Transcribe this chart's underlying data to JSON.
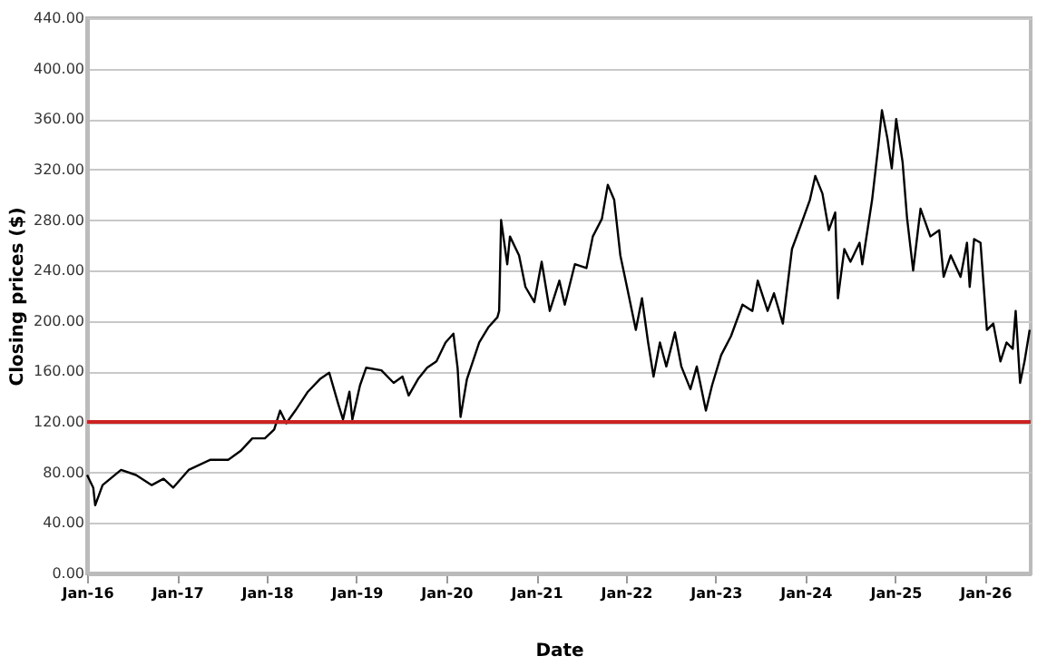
{
  "chart_data": {
    "type": "line",
    "xlabel": "Date",
    "ylabel": "Closing prices ($)",
    "x": [
      "2016-01-01",
      "2016-01-26",
      "2016-02-03",
      "2016-03-04",
      "2016-05-18",
      "2016-07-18",
      "2016-09-20",
      "2016-11-07",
      "2016-12-16",
      "2017-02-17",
      "2017-05-15",
      "2017-07-28",
      "2017-09-16",
      "2017-11-03",
      "2017-12-24",
      "2018-01-31",
      "2018-02-24",
      "2018-03-21",
      "2018-04-27",
      "2018-06-17",
      "2018-08-05",
      "2018-09-12",
      "2018-10-19",
      "2018-11-07",
      "2018-12-03",
      "2018-12-15",
      "2019-01-15",
      "2019-02-09",
      "2019-04-12",
      "2019-06-01",
      "2019-07-07",
      "2019-08-01",
      "2019-09-08",
      "2019-10-15",
      "2019-11-22",
      "2019-12-29",
      "2020-01-30",
      "2020-02-16",
      "2020-02-28",
      "2020-03-25",
      "2020-05-14",
      "2020-06-20",
      "2020-07-27",
      "2020-08-03",
      "2020-08-11",
      "2020-09-05",
      "2020-09-16",
      "2020-10-23",
      "2020-11-18",
      "2020-12-24",
      "2021-01-23",
      "2021-02-25",
      "2021-04-05",
      "2021-04-27",
      "2021-06-07",
      "2021-07-24",
      "2021-08-19",
      "2021-09-25",
      "2021-10-19",
      "2021-11-14",
      "2021-12-09",
      "2022-01-05",
      "2022-02-10",
      "2022-03-07",
      "2022-04-01",
      "2022-04-23",
      "2022-05-19",
      "2022-06-14",
      "2022-07-19",
      "2022-08-14",
      "2022-09-20",
      "2022-10-16",
      "2022-11-22",
      "2022-12-17",
      "2023-01-23",
      "2023-03-04",
      "2023-04-20",
      "2023-05-30",
      "2023-06-21",
      "2023-07-31",
      "2023-08-26",
      "2023-10-01",
      "2023-11-07",
      "2023-12-13",
      "2024-01-19",
      "2024-02-10",
      "2024-03-10",
      "2024-04-05",
      "2024-05-01",
      "2024-05-12",
      "2024-06-07",
      "2024-07-02",
      "2024-08-08",
      "2024-08-19",
      "2024-09-28",
      "2024-10-24",
      "2024-11-07",
      "2024-11-29",
      "2024-12-17",
      "2025-01-04",
      "2025-01-30",
      "2025-02-17",
      "2025-03-14",
      "2025-04-13",
      "2025-05-23",
      "2025-06-28",
      "2025-07-16",
      "2025-08-14",
      "2025-09-23",
      "2025-10-19",
      "2025-10-30",
      "2025-11-17",
      "2025-12-13",
      "2026-01-08",
      "2026-02-03",
      "2026-03-04",
      "2026-03-29",
      "2026-04-23",
      "2026-05-05",
      "2026-05-23",
      "2026-06-10",
      "2026-07-01"
    ],
    "series": [
      {
        "color": "#000000",
        "values": [
          78,
          68,
          54,
          70,
          82,
          78,
          70,
          75,
          68,
          82,
          90,
          90,
          97,
          107,
          107,
          114,
          129,
          119,
          129,
          144,
          154,
          159,
          134,
          122,
          144,
          122,
          149,
          163,
          161,
          151,
          156,
          141,
          154,
          163,
          168,
          183,
          190,
          163,
          124,
          154,
          183,
          195,
          203,
          208,
          280,
          245,
          267,
          252,
          227,
          215,
          247,
          208,
          232,
          213,
          245,
          242,
          267,
          281,
          308,
          296,
          252,
          227,
          193,
          218,
          183,
          156,
          183,
          164,
          191,
          164,
          146,
          164,
          129,
          149,
          173,
          188,
          213,
          208,
          232,
          208,
          222,
          198,
          257,
          276,
          296,
          315,
          301,
          272,
          286,
          218,
          257,
          247,
          262,
          245,
          296,
          340,
          367,
          345,
          321,
          360,
          326,
          282,
          240,
          289,
          267,
          272,
          235,
          252,
          235,
          262,
          227,
          265,
          262,
          193,
          198,
          168,
          183,
          178,
          208,
          151,
          168,
          193
        ]
      }
    ],
    "xlim": [
      "2016-01-01",
      "2026-07-05"
    ],
    "xticks": [
      {
        "value": "2016-01-01",
        "label": "Jan-16"
      },
      {
        "value": "2017-01-01",
        "label": "Jan-17"
      },
      {
        "value": "2018-01-01",
        "label": "Jan-18"
      },
      {
        "value": "2019-01-01",
        "label": "Jan-19"
      },
      {
        "value": "2020-01-01",
        "label": "Jan-20"
      },
      {
        "value": "2021-01-01",
        "label": "Jan-21"
      },
      {
        "value": "2022-01-01",
        "label": "Jan-22"
      },
      {
        "value": "2023-01-01",
        "label": "Jan-23"
      },
      {
        "value": "2024-01-01",
        "label": "Jan-24"
      },
      {
        "value": "2025-01-01",
        "label": "Jan-25"
      },
      {
        "value": "2026-01-01",
        "label": "Jan-26"
      }
    ],
    "ylim": [
      0,
      440
    ],
    "yticks": [
      {
        "value": 0,
        "label": "0.00"
      },
      {
        "value": 40,
        "label": "40.00"
      },
      {
        "value": 80,
        "label": "80.00"
      },
      {
        "value": 120,
        "label": "120.00"
      },
      {
        "value": 160,
        "label": "160.00"
      },
      {
        "value": 200,
        "label": "200.00"
      },
      {
        "value": 240,
        "label": "240.00"
      },
      {
        "value": 280,
        "label": "280.00"
      },
      {
        "value": 320,
        "label": "320.00"
      },
      {
        "value": 360,
        "label": "360.00"
      },
      {
        "value": 400,
        "label": "400.00"
      },
      {
        "value": 440,
        "label": "440.00"
      }
    ],
    "ref_lines": [
      {
        "axis": "y",
        "value": 120,
        "color": "#cc2222"
      }
    ],
    "grid": "y",
    "marker": "none",
    "line_style": "solid"
  }
}
